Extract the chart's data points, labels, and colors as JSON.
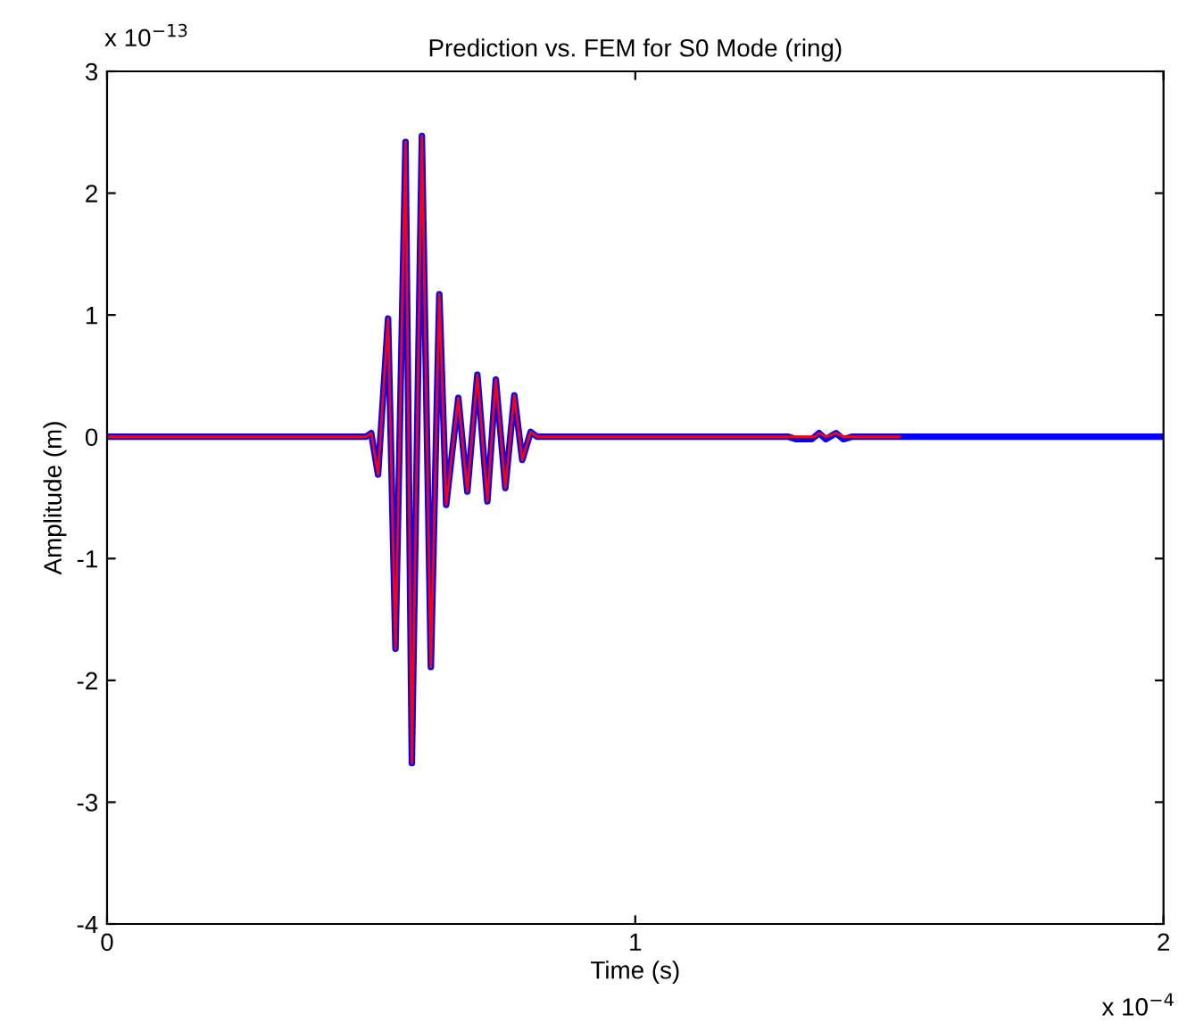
{
  "chart_data": {
    "type": "line",
    "title": "Prediction vs. FEM for S0 Mode (ring)",
    "xlabel": "Time (s)",
    "ylabel": "Amplitude (m)",
    "annotations": [
      "x 10$^{−13}$",
      "x 10$^{−4}$"
    ],
    "xlim": [
      0,
      2
    ],
    "ylim": [
      -4,
      3
    ],
    "xticks": [
      0,
      1,
      2
    ],
    "yticks": [
      -4,
      -3,
      -2,
      -1,
      0,
      1,
      2,
      3
    ],
    "grid": false,
    "legend": false,
    "marker": "none",
    "line_style": "solid",
    "series": [
      {
        "color": "#0000ff",
        "x": [
          0,
          0.49,
          0.5,
          0.513,
          0.532,
          0.546,
          0.565,
          0.577,
          0.596,
          0.613,
          0.629,
          0.642,
          0.665,
          0.682,
          0.701,
          0.72,
          0.736,
          0.754,
          0.771,
          0.786,
          0.802,
          0.814,
          1.29,
          1.305,
          1.334,
          1.348,
          1.361,
          1.38,
          1.394,
          1.41,
          2
        ],
        "values": [
          0,
          0,
          0.03,
          -0.31,
          0.97,
          -1.74,
          2.42,
          -2.68,
          2.47,
          -1.89,
          1.17,
          -0.56,
          0.32,
          -0.45,
          0.51,
          -0.53,
          0.47,
          -0.42,
          0.34,
          -0.19,
          0.04,
          0,
          0,
          -0.02,
          -0.02,
          0.03,
          -0.02,
          0.03,
          -0.02,
          0,
          0
        ]
      },
      {
        "color": "#ff0000",
        "x": [
          0,
          0.49,
          0.5,
          0.513,
          0.532,
          0.546,
          0.565,
          0.577,
          0.596,
          0.613,
          0.629,
          0.642,
          0.665,
          0.682,
          0.701,
          0.72,
          0.736,
          0.754,
          0.771,
          0.786,
          0.802,
          0.814,
          1.34,
          1.348,
          1.361,
          1.38,
          1.394,
          1.5
        ],
        "values": [
          0,
          0,
          0.03,
          -0.31,
          0.97,
          -1.74,
          2.42,
          -2.68,
          2.47,
          -1.89,
          1.17,
          -0.56,
          0.32,
          -0.45,
          0.51,
          -0.53,
          0.47,
          -0.42,
          0.34,
          -0.19,
          0.04,
          0,
          0,
          0.03,
          0,
          0.03,
          0,
          0
        ]
      }
    ]
  }
}
